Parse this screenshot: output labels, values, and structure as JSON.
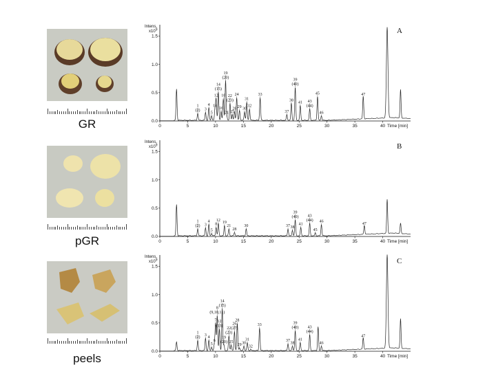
{
  "photos": [
    {
      "label": "GR"
    },
    {
      "label": "pGR"
    },
    {
      "label": "peels"
    }
  ],
  "chart_data": [
    {
      "type": "line",
      "panel": "A",
      "y_title": "Intens.",
      "y_exp": "x10",
      "y_exp_power": "9",
      "y_ticks": [
        "0.0",
        "0.5",
        "1.0",
        "1.5"
      ],
      "ylim": [
        0,
        1.7
      ],
      "x_ticks": [
        "0",
        "5",
        "10",
        "15",
        "20",
        "25",
        "30",
        "35",
        "40",
        "Time [min]"
      ],
      "xlim": [
        0,
        45
      ],
      "peaks": [
        {
          "t": 3.0,
          "h": 0.55,
          "label": []
        },
        {
          "t": 6.8,
          "h": 0.12,
          "label": [
            "1",
            "(2)"
          ]
        },
        {
          "t": 8.2,
          "h": 0.14,
          "label": [
            "3"
          ]
        },
        {
          "t": 8.8,
          "h": 0.22,
          "label": [
            "4"
          ]
        },
        {
          "t": 9.3,
          "h": 0.08,
          "label": [
            "5"
          ]
        },
        {
          "t": 9.9,
          "h": 0.2,
          "label": [
            "18"
          ]
        },
        {
          "t": 10.1,
          "h": 0.38,
          "label": [
            "12"
          ]
        },
        {
          "t": 10.5,
          "h": 0.5,
          "label": [
            "14",
            "(15)"
          ]
        },
        {
          "t": 11.0,
          "h": 0.16,
          "label": [
            "16"
          ]
        },
        {
          "t": 11.4,
          "h": 0.38,
          "label": [
            "18"
          ]
        },
        {
          "t": 11.8,
          "h": 0.7,
          "label": [
            "19",
            "(20)"
          ]
        },
        {
          "t": 12.0,
          "h": 0.08,
          "label": [
            "21"
          ]
        },
        {
          "t": 12.6,
          "h": 0.3,
          "label": [
            "22",
            "(23)"
          ]
        },
        {
          "t": 13.0,
          "h": 0.1,
          "label": [
            "25"
          ]
        },
        {
          "t": 13.4,
          "h": 0.15,
          "label": [
            "28"
          ]
        },
        {
          "t": 13.8,
          "h": 0.4,
          "label": [
            "24"
          ]
        },
        {
          "t": 14.3,
          "h": 0.18,
          "label": [
            "29"
          ]
        },
        {
          "t": 15.2,
          "h": 0.15,
          "label": [
            "30"
          ]
        },
        {
          "t": 15.6,
          "h": 0.32,
          "label": [
            "31"
          ]
        },
        {
          "t": 16.1,
          "h": 0.2,
          "label": [
            "32"
          ]
        },
        {
          "t": 18.0,
          "h": 0.4,
          "label": [
            "33"
          ]
        },
        {
          "t": 22.8,
          "h": 0.1,
          "label": [
            "37"
          ]
        },
        {
          "t": 23.6,
          "h": 0.3,
          "label": [
            "38"
          ]
        },
        {
          "t": 24.3,
          "h": 0.58,
          "label": [
            "39",
            "(40)"
          ]
        },
        {
          "t": 25.2,
          "h": 0.26,
          "label": [
            "41"
          ]
        },
        {
          "t": 26.9,
          "h": 0.2,
          "label": [
            "43",
            "(44)"
          ]
        },
        {
          "t": 28.3,
          "h": 0.42,
          "label": [
            "45"
          ]
        },
        {
          "t": 29.0,
          "h": 0.08,
          "label": [
            "46"
          ]
        },
        {
          "t": 36.5,
          "h": 0.4,
          "label": [
            "47"
          ]
        },
        {
          "t": 40.8,
          "h": 1.6,
          "label": []
        },
        {
          "t": 43.2,
          "h": 0.5,
          "label": []
        }
      ]
    },
    {
      "type": "line",
      "panel": "B",
      "y_title": "Intens.",
      "y_exp": "x10",
      "y_exp_power": "9",
      "y_ticks": [
        "0.0",
        "0.5",
        "1.0",
        "1.5"
      ],
      "ylim": [
        0,
        1.7
      ],
      "x_ticks": [
        "0",
        "5",
        "10",
        "15",
        "20",
        "25",
        "30",
        "35",
        "40",
        "Time [min]"
      ],
      "xlim": [
        0,
        45
      ],
      "peaks": [
        {
          "t": 3.0,
          "h": 0.55,
          "label": []
        },
        {
          "t": 6.8,
          "h": 0.12,
          "label": [
            "1",
            "(2)"
          ]
        },
        {
          "t": 8.2,
          "h": 0.14,
          "label": [
            "3"
          ]
        },
        {
          "t": 8.8,
          "h": 0.2,
          "label": [
            "4"
          ]
        },
        {
          "t": 9.3,
          "h": 0.04,
          "label": [
            "5"
          ]
        },
        {
          "t": 10.1,
          "h": 0.15,
          "label": [
            "8"
          ]
        },
        {
          "t": 10.5,
          "h": 0.22,
          "label": [
            "12"
          ]
        },
        {
          "t": 11.6,
          "h": 0.18,
          "label": [
            "19"
          ]
        },
        {
          "t": 12.4,
          "h": 0.12,
          "label": [
            "21"
          ]
        },
        {
          "t": 13.4,
          "h": 0.06,
          "label": [
            "28"
          ]
        },
        {
          "t": 15.5,
          "h": 0.12,
          "label": [
            "30"
          ]
        },
        {
          "t": 23.0,
          "h": 0.12,
          "label": [
            "37"
          ]
        },
        {
          "t": 23.8,
          "h": 0.1,
          "label": [
            "38"
          ]
        },
        {
          "t": 24.3,
          "h": 0.28,
          "label": [
            "39",
            "(40)"
          ]
        },
        {
          "t": 25.3,
          "h": 0.15,
          "label": [
            "41"
          ]
        },
        {
          "t": 26.9,
          "h": 0.22,
          "label": [
            "43",
            "(44)"
          ]
        },
        {
          "t": 27.9,
          "h": 0.05,
          "label": [
            "45"
          ]
        },
        {
          "t": 29.0,
          "h": 0.2,
          "label": [
            "46"
          ]
        },
        {
          "t": 36.7,
          "h": 0.16,
          "label": [
            "47"
          ]
        },
        {
          "t": 40.8,
          "h": 0.6,
          "label": []
        },
        {
          "t": 43.2,
          "h": 0.18,
          "label": []
        }
      ]
    },
    {
      "type": "line",
      "panel": "C",
      "y_title": "Intens.",
      "y_exp": "x10",
      "y_exp_power": "9",
      "y_ticks": [
        "0.0",
        "0.5",
        "1.0",
        "1.5"
      ],
      "ylim": [
        0,
        1.7
      ],
      "x_ticks": [
        "0",
        "5",
        "10",
        "15",
        "20",
        "25",
        "30",
        "35",
        "40",
        "Time [min]"
      ],
      "xlim": [
        0,
        45
      ],
      "peaks": [
        {
          "t": 3.0,
          "h": 0.15,
          "label": []
        },
        {
          "t": 6.8,
          "h": 0.18,
          "label": [
            "1",
            "(2)"
          ]
        },
        {
          "t": 8.2,
          "h": 0.22,
          "label": [
            "3"
          ]
        },
        {
          "t": 8.8,
          "h": 0.18,
          "label": [
            "4"
          ]
        },
        {
          "t": 9.3,
          "h": 0.06,
          "label": [
            "5"
          ]
        },
        {
          "t": 9.8,
          "h": 0.12,
          "label": [
            "6"
          ]
        },
        {
          "t": 10.0,
          "h": 0.48,
          "label": [
            "7"
          ]
        },
        {
          "t": 10.3,
          "h": 0.62,
          "label": [
            "8",
            "(9,10,11)"
          ]
        },
        {
          "t": 10.7,
          "h": 0.38,
          "label": [
            "12",
            "(13)"
          ]
        },
        {
          "t": 11.2,
          "h": 0.74,
          "label": [
            "14",
            "(15)"
          ]
        },
        {
          "t": 11.5,
          "h": 0.1,
          "label": [
            "19",
            "(20)"
          ]
        },
        {
          "t": 12.4,
          "h": 0.26,
          "label": [
            "22",
            "(23)"
          ]
        },
        {
          "t": 12.8,
          "h": 0.1,
          "label": [
            "25"
          ]
        },
        {
          "t": 13.4,
          "h": 0.34,
          "label": [
            "26",
            "(27)"
          ]
        },
        {
          "t": 13.9,
          "h": 0.48,
          "label": [
            "28"
          ]
        },
        {
          "t": 14.3,
          "h": 0.05,
          "label": [
            "29"
          ]
        },
        {
          "t": 15.1,
          "h": 0.08,
          "label": [
            "30"
          ]
        },
        {
          "t": 15.7,
          "h": 0.14,
          "label": [
            "31"
          ]
        },
        {
          "t": 16.3,
          "h": 0.02,
          "label": [
            "32"
          ]
        },
        {
          "t": 17.9,
          "h": 0.4,
          "label": [
            "33"
          ]
        },
        {
          "t": 23.0,
          "h": 0.12,
          "label": [
            "37"
          ]
        },
        {
          "t": 23.8,
          "h": 0.08,
          "label": [
            "38"
          ]
        },
        {
          "t": 24.3,
          "h": 0.35,
          "label": [
            "39",
            "(40)"
          ]
        },
        {
          "t": 25.2,
          "h": 0.14,
          "label": [
            "41"
          ]
        },
        {
          "t": 26.9,
          "h": 0.28,
          "label": [
            "43",
            "(44)"
          ]
        },
        {
          "t": 28.4,
          "h": 0.42,
          "label": []
        },
        {
          "t": 29.0,
          "h": 0.08,
          "label": [
            "46"
          ]
        },
        {
          "t": 36.5,
          "h": 0.2,
          "label": [
            "47"
          ]
        },
        {
          "t": 40.8,
          "h": 1.65,
          "label": []
        },
        {
          "t": 43.2,
          "h": 0.52,
          "label": []
        }
      ]
    }
  ]
}
